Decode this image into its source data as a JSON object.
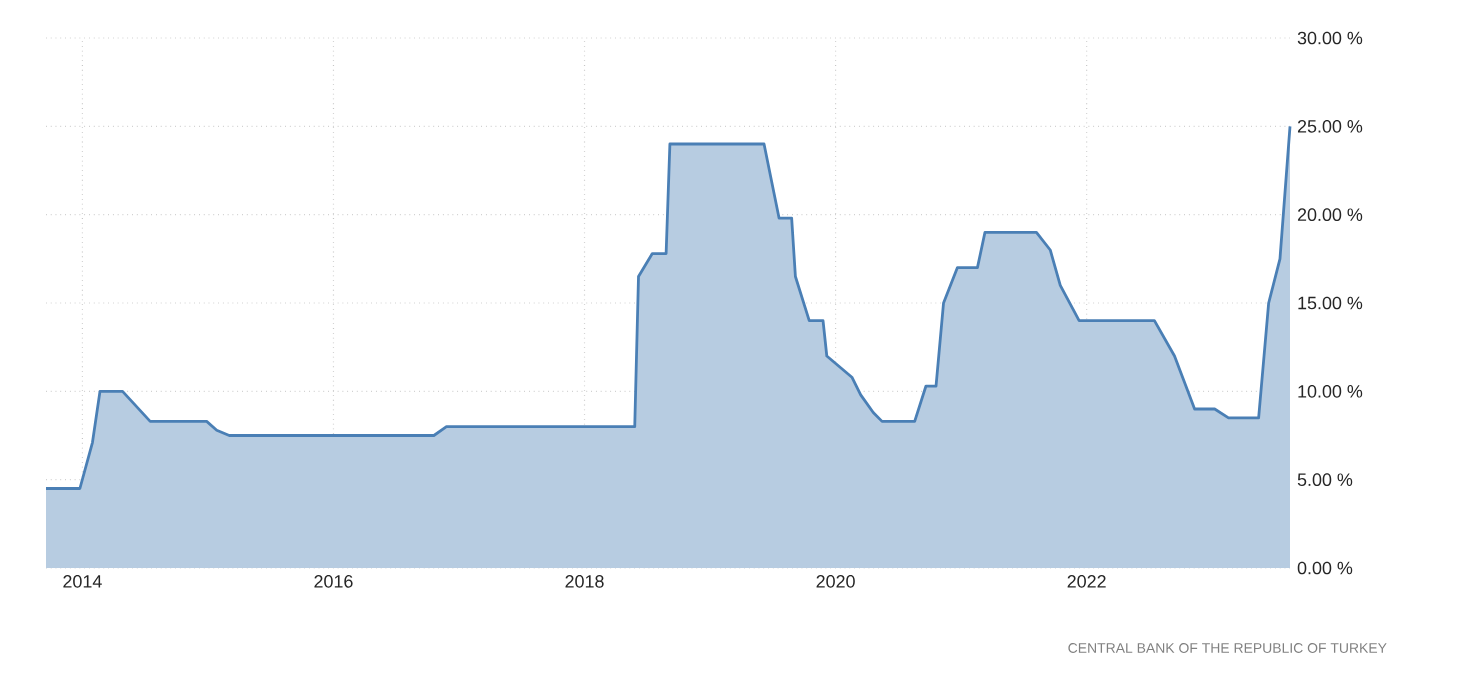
{
  "chart_data": {
    "type": "area",
    "color": "#4a7fb5",
    "grid": true,
    "x": [
      2013.71,
      2013.98,
      2014.08,
      2014.14,
      2014.32,
      2014.54,
      2014.99,
      2015.07,
      2015.17,
      2016.8,
      2016.9,
      2018.4,
      2018.43,
      2018.54,
      2018.65,
      2018.68,
      2019.43,
      2019.55,
      2019.65,
      2019.68,
      2019.79,
      2019.9,
      2019.93,
      2020.13,
      2020.2,
      2020.3,
      2020.37,
      2020.63,
      2020.72,
      2020.8,
      2020.86,
      2020.97,
      2021.13,
      2021.19,
      2021.6,
      2021.71,
      2021.79,
      2021.94,
      2022.54,
      2022.7,
      2022.86,
      2023.02,
      2023.13,
      2023.37,
      2023.45,
      2023.54,
      2023.62
    ],
    "values": [
      4.5,
      4.5,
      7.1,
      10,
      10,
      8.3,
      8.3,
      7.8,
      7.5,
      7.5,
      8,
      8,
      16.5,
      17.8,
      17.8,
      24,
      24,
      19.8,
      19.8,
      16.5,
      14,
      14,
      12,
      10.8,
      9.8,
      8.8,
      8.3,
      8.3,
      10.3,
      10.3,
      15,
      17,
      17,
      19,
      19,
      18,
      16,
      14,
      14,
      12,
      9,
      9,
      8.5,
      8.5,
      15,
      17.5,
      25
    ],
    "xlim": [
      2013.71,
      2023.62
    ],
    "xticks": [
      2014,
      2016,
      2018,
      2020,
      2022
    ],
    "ylim": [
      0,
      30
    ],
    "yticks": [
      {
        "value": 0,
        "label": "0.00 %"
      },
      {
        "value": 5,
        "label": "5.00 %"
      },
      {
        "value": 10,
        "label": "10.00 %"
      },
      {
        "value": 15,
        "label": "15.00 %"
      },
      {
        "value": 20,
        "label": "20.00 %"
      },
      {
        "value": 25,
        "label": "25.00 %"
      },
      {
        "value": 30,
        "label": "30.00 %"
      }
    ],
    "annotations": [
      "CENTRAL BANK OF THE REPUBLIC OF TURKEY"
    ]
  }
}
